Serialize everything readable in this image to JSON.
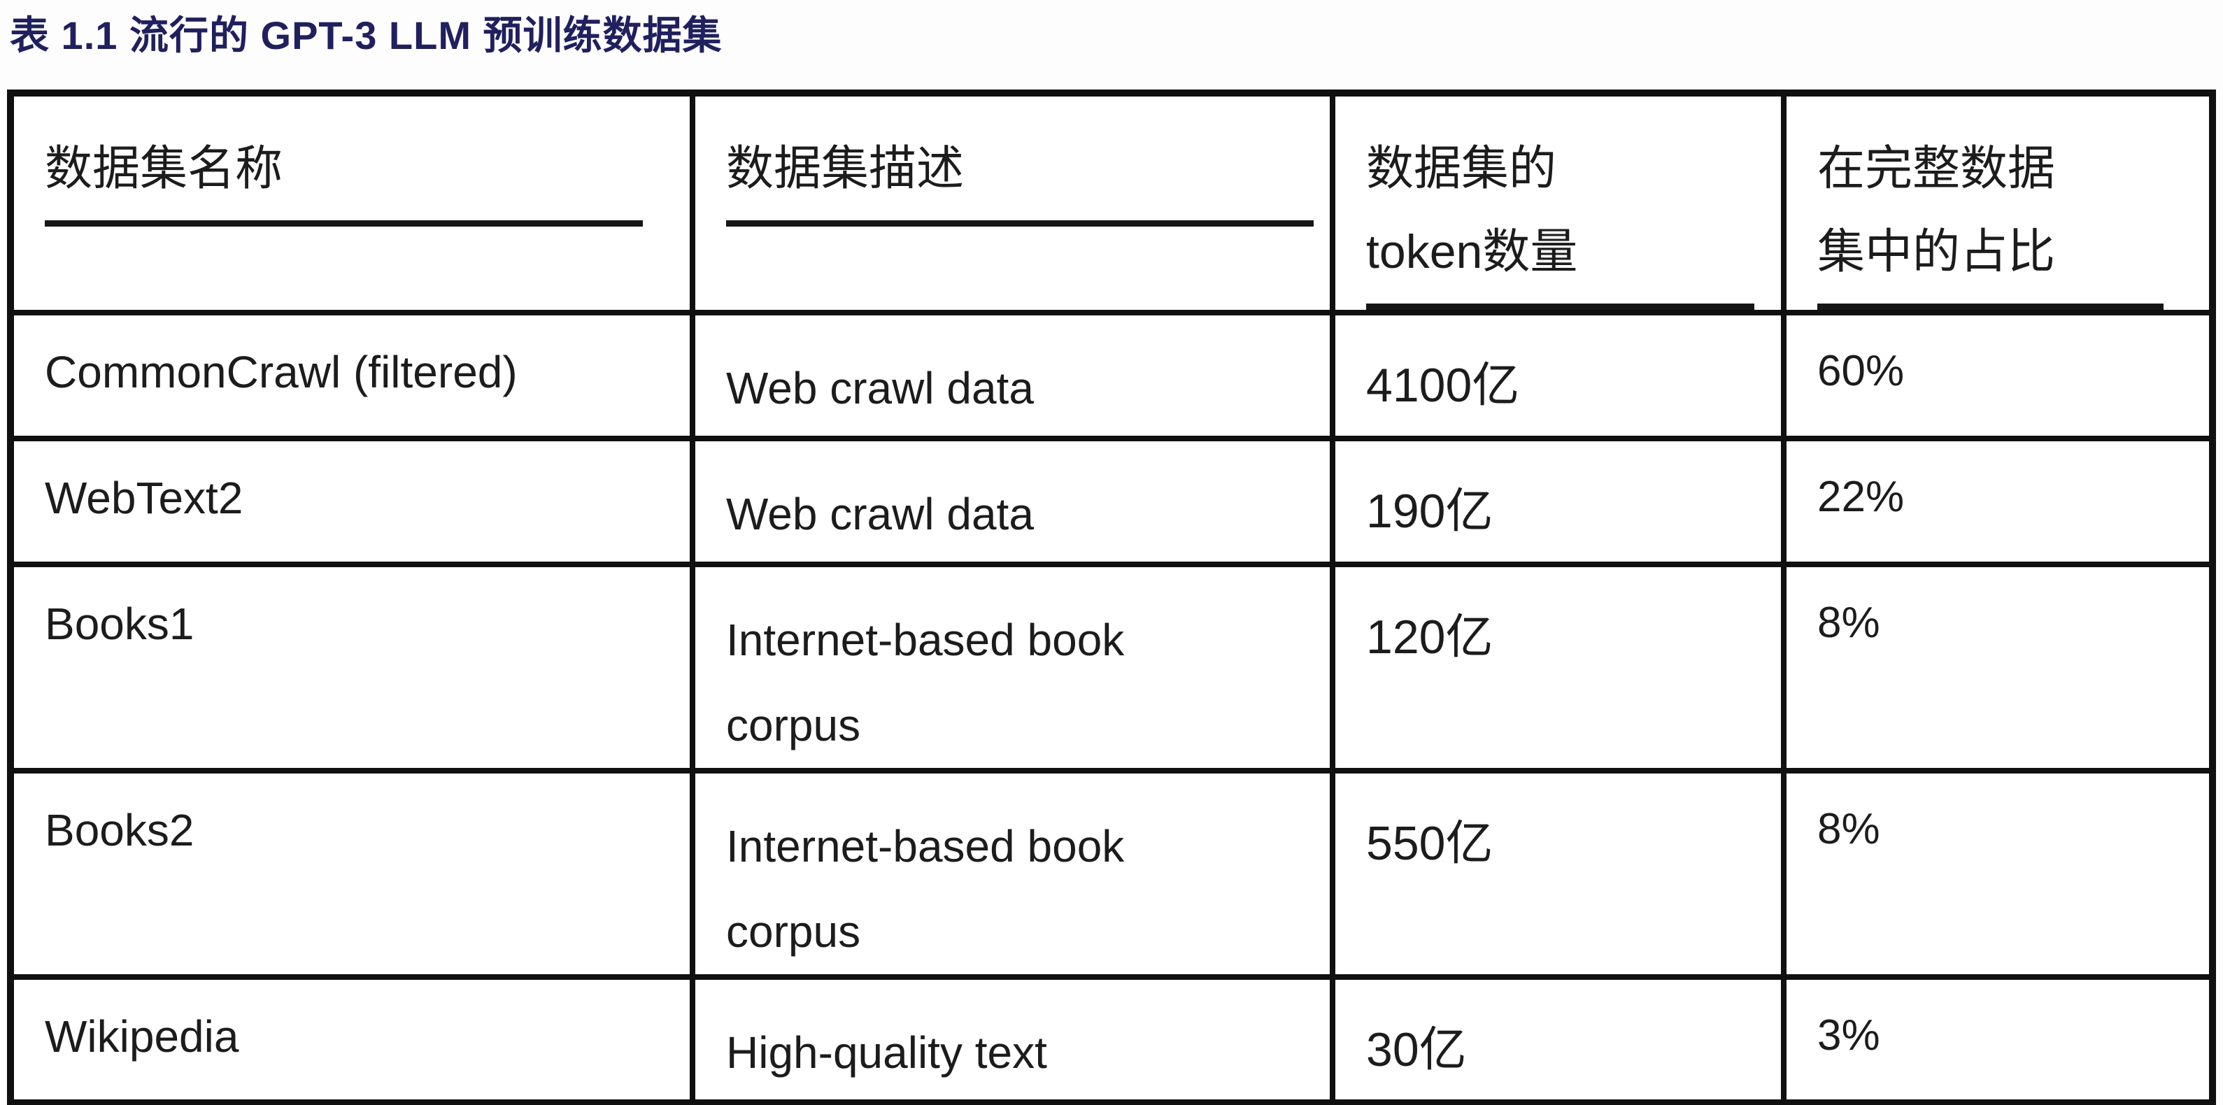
{
  "title": "表 1.1 流行的 GPT-3 LLM 预训练数据集",
  "colors": {
    "title_color": "#20205f",
    "border_color": "#101010",
    "text_color": "#1c1c1c",
    "background": "#fdfdfd"
  },
  "table": {
    "columns": [
      {
        "label": "数据集名称"
      },
      {
        "label": "数据集描述"
      },
      {
        "label": "数据集的\ntoken数量"
      },
      {
        "label": "在完整数据\n集中的占比"
      }
    ],
    "rows": [
      {
        "name": "CommonCrawl (filtered)",
        "description": "Web crawl data",
        "tokens": "4100亿",
        "proportion": "60%"
      },
      {
        "name": "WebText2",
        "description": "Web crawl data",
        "tokens": "190亿",
        "proportion": "22%"
      },
      {
        "name": "Books1",
        "description": "Internet-based book\ncorpus",
        "tokens": "120亿",
        "proportion": "8%"
      },
      {
        "name": "Books2",
        "description": "Internet-based book\ncorpus",
        "tokens": "550亿",
        "proportion": "8%"
      },
      {
        "name": "Wikipedia",
        "description": "High-quality text",
        "tokens": "30亿",
        "proportion": "3%"
      }
    ]
  }
}
